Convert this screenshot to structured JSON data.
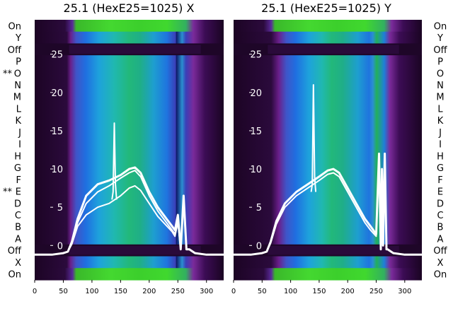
{
  "chart_data": [
    {
      "type": "heatmap",
      "title": "25.1 (HexE25=1025) X",
      "xlim": [
        0,
        330
      ],
      "x_ticks": [
        0,
        50,
        100,
        150,
        200,
        250,
        300
      ],
      "ylim": [
        -4.5,
        29.5
      ],
      "y_ticks": [
        0,
        5,
        10,
        15,
        20,
        25
      ],
      "row_labels_top_to_bottom": [
        "On",
        "Y",
        "Off",
        "P",
        "O",
        "N",
        "M",
        "L",
        "K",
        "J",
        "I",
        "H",
        "G",
        "F",
        "E",
        "D",
        "C",
        "B",
        "A",
        "Off",
        "X",
        "On"
      ],
      "marks": [
        "",
        "",
        "",
        "",
        "**",
        "",
        "",
        "",
        "",
        "",
        "",
        "",
        "",
        "",
        "**",
        "",
        "",
        "",
        "",
        "",
        "",
        ""
      ],
      "grid": false,
      "series": [
        {
          "x": [
            0,
            30,
            50,
            58,
            65,
            75,
            90,
            110,
            130,
            150,
            165,
            175,
            185,
            200,
            215,
            230,
            240,
            245,
            250,
            255,
            260,
            265,
            270,
            280,
            300,
            330
          ],
          "y": [
            -1.2,
            -1.2,
            -1.0,
            -0.8,
            0.5,
            3.5,
            6.5,
            8.0,
            8.5,
            9.2,
            10.0,
            10.2,
            9.5,
            7.0,
            5.0,
            3.5,
            2.5,
            2.0,
            4.0,
            -0.5,
            6.5,
            -0.5,
            -0.5,
            -1.0,
            -1.2,
            -1.2
          ]
        },
        {
          "x": [
            0,
            30,
            50,
            58,
            65,
            75,
            90,
            110,
            130,
            150,
            165,
            175,
            185,
            200,
            215,
            230,
            240,
            245,
            250,
            255,
            260,
            265,
            270,
            280,
            300,
            330
          ],
          "y": [
            -1.2,
            -1.2,
            -1.0,
            -0.8,
            0.3,
            3.0,
            5.5,
            7.0,
            7.8,
            8.8,
            9.5,
            9.8,
            9.0,
            6.5,
            4.5,
            3.0,
            2.0,
            1.5,
            3.5,
            -0.5,
            6.0,
            -0.5,
            -0.5,
            -1.0,
            -1.2,
            -1.2
          ]
        },
        {
          "x": [
            0,
            30,
            50,
            58,
            65,
            75,
            90,
            110,
            130,
            150,
            165,
            175,
            185,
            200,
            215,
            230,
            240,
            245,
            250,
            255,
            260,
            265,
            270,
            280,
            300,
            330
          ],
          "y": [
            -1.2,
            -1.2,
            -1.0,
            -0.8,
            0.2,
            2.5,
            4.0,
            5.0,
            5.5,
            6.5,
            7.5,
            7.8,
            7.2,
            5.5,
            3.8,
            2.6,
            1.8,
            1.2,
            3.0,
            -0.5,
            5.5,
            -0.5,
            -0.5,
            -1.0,
            -1.2,
            -1.2
          ]
        },
        {
          "x": [
            135,
            137,
            139,
            141,
            143
          ],
          "y": [
            6,
            7,
            16,
            8,
            6
          ]
        }
      ]
    },
    {
      "type": "heatmap",
      "title": "25.1 (HexE25=1025) Y",
      "xlim": [
        0,
        330
      ],
      "x_ticks": [
        0,
        50,
        100,
        150,
        200,
        250,
        300
      ],
      "ylim": [
        -4.5,
        29.5
      ],
      "y_ticks": [
        0,
        5,
        10,
        15,
        20,
        25
      ],
      "row_labels_top_to_bottom": [
        "On",
        "Y",
        "Off",
        "P",
        "O",
        "N",
        "M",
        "L",
        "K",
        "J",
        "I",
        "H",
        "G",
        "F",
        "E",
        "D",
        "C",
        "B",
        "A",
        "Off",
        "X",
        "On"
      ],
      "grid": false,
      "series": [
        {
          "x": [
            0,
            30,
            50,
            58,
            65,
            75,
            90,
            110,
            130,
            150,
            165,
            175,
            185,
            200,
            215,
            230,
            240,
            250,
            255,
            258,
            260,
            262,
            265,
            268,
            270,
            280,
            300,
            330
          ],
          "y": [
            -1.2,
            -1.2,
            -1.0,
            -0.8,
            0.5,
            3.2,
            5.5,
            7.0,
            8.0,
            9.0,
            9.8,
            10.0,
            9.5,
            7.5,
            5.5,
            3.5,
            2.5,
            1.5,
            12,
            -0.5,
            10,
            0,
            12,
            -0.5,
            -0.5,
            -1.0,
            -1.2,
            -1.2
          ]
        },
        {
          "x": [
            0,
            30,
            50,
            58,
            65,
            75,
            90,
            110,
            130,
            150,
            165,
            175,
            185,
            200,
            215,
            230,
            240,
            250,
            255,
            258,
            260,
            262,
            265,
            268,
            270,
            280,
            300,
            330
          ],
          "y": [
            -1.2,
            -1.2,
            -1.0,
            -0.8,
            0.3,
            2.8,
            5.0,
            6.5,
            7.5,
            8.5,
            9.3,
            9.5,
            9.0,
            7.0,
            5.0,
            3.0,
            2.0,
            1.2,
            11,
            -0.5,
            9.5,
            0,
            11,
            -0.5,
            -0.5,
            -1.0,
            -1.2,
            -1.2
          ]
        },
        {
          "x": [
            136,
            138,
            140,
            142,
            144
          ],
          "y": [
            7,
            8,
            21,
            9,
            7
          ]
        }
      ]
    }
  ]
}
